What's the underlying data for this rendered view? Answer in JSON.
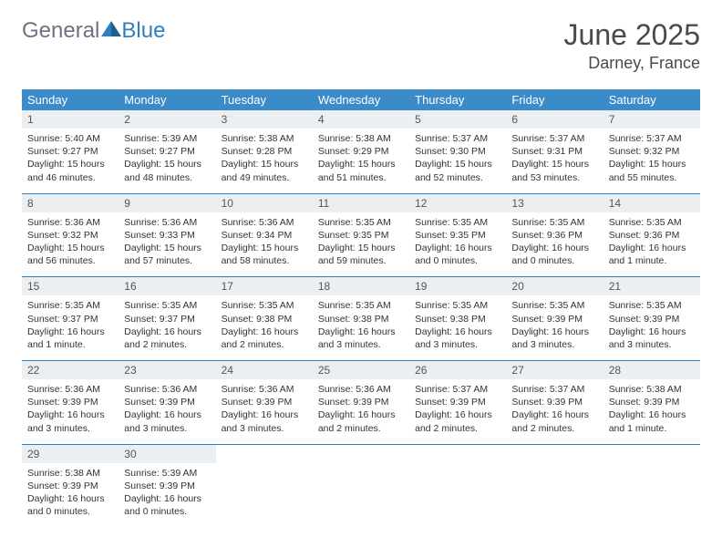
{
  "brand": {
    "part1": "General",
    "part2": "Blue"
  },
  "title": "June 2025",
  "location": "Darney, France",
  "colors": {
    "header_bg": "#3b8bc9",
    "header_text": "#ffffff",
    "daynum_bg": "#eceff1",
    "border": "#2f7fbf",
    "logo_gray": "#6b7280",
    "logo_blue": "#2f7fbf"
  },
  "day_headers": [
    "Sunday",
    "Monday",
    "Tuesday",
    "Wednesday",
    "Thursday",
    "Friday",
    "Saturday"
  ],
  "weeks": [
    [
      {
        "n": "1",
        "sr": "5:40 AM",
        "ss": "9:27 PM",
        "dl": "15 hours and 46 minutes."
      },
      {
        "n": "2",
        "sr": "5:39 AM",
        "ss": "9:27 PM",
        "dl": "15 hours and 48 minutes."
      },
      {
        "n": "3",
        "sr": "5:38 AM",
        "ss": "9:28 PM",
        "dl": "15 hours and 49 minutes."
      },
      {
        "n": "4",
        "sr": "5:38 AM",
        "ss": "9:29 PM",
        "dl": "15 hours and 51 minutes."
      },
      {
        "n": "5",
        "sr": "5:37 AM",
        "ss": "9:30 PM",
        "dl": "15 hours and 52 minutes."
      },
      {
        "n": "6",
        "sr": "5:37 AM",
        "ss": "9:31 PM",
        "dl": "15 hours and 53 minutes."
      },
      {
        "n": "7",
        "sr": "5:37 AM",
        "ss": "9:32 PM",
        "dl": "15 hours and 55 minutes."
      }
    ],
    [
      {
        "n": "8",
        "sr": "5:36 AM",
        "ss": "9:32 PM",
        "dl": "15 hours and 56 minutes."
      },
      {
        "n": "9",
        "sr": "5:36 AM",
        "ss": "9:33 PM",
        "dl": "15 hours and 57 minutes."
      },
      {
        "n": "10",
        "sr": "5:36 AM",
        "ss": "9:34 PM",
        "dl": "15 hours and 58 minutes."
      },
      {
        "n": "11",
        "sr": "5:35 AM",
        "ss": "9:35 PM",
        "dl": "15 hours and 59 minutes."
      },
      {
        "n": "12",
        "sr": "5:35 AM",
        "ss": "9:35 PM",
        "dl": "16 hours and 0 minutes."
      },
      {
        "n": "13",
        "sr": "5:35 AM",
        "ss": "9:36 PM",
        "dl": "16 hours and 0 minutes."
      },
      {
        "n": "14",
        "sr": "5:35 AM",
        "ss": "9:36 PM",
        "dl": "16 hours and 1 minute."
      }
    ],
    [
      {
        "n": "15",
        "sr": "5:35 AM",
        "ss": "9:37 PM",
        "dl": "16 hours and 1 minute."
      },
      {
        "n": "16",
        "sr": "5:35 AM",
        "ss": "9:37 PM",
        "dl": "16 hours and 2 minutes."
      },
      {
        "n": "17",
        "sr": "5:35 AM",
        "ss": "9:38 PM",
        "dl": "16 hours and 2 minutes."
      },
      {
        "n": "18",
        "sr": "5:35 AM",
        "ss": "9:38 PM",
        "dl": "16 hours and 3 minutes."
      },
      {
        "n": "19",
        "sr": "5:35 AM",
        "ss": "9:38 PM",
        "dl": "16 hours and 3 minutes."
      },
      {
        "n": "20",
        "sr": "5:35 AM",
        "ss": "9:39 PM",
        "dl": "16 hours and 3 minutes."
      },
      {
        "n": "21",
        "sr": "5:35 AM",
        "ss": "9:39 PM",
        "dl": "16 hours and 3 minutes."
      }
    ],
    [
      {
        "n": "22",
        "sr": "5:36 AM",
        "ss": "9:39 PM",
        "dl": "16 hours and 3 minutes."
      },
      {
        "n": "23",
        "sr": "5:36 AM",
        "ss": "9:39 PM",
        "dl": "16 hours and 3 minutes."
      },
      {
        "n": "24",
        "sr": "5:36 AM",
        "ss": "9:39 PM",
        "dl": "16 hours and 3 minutes."
      },
      {
        "n": "25",
        "sr": "5:36 AM",
        "ss": "9:39 PM",
        "dl": "16 hours and 2 minutes."
      },
      {
        "n": "26",
        "sr": "5:37 AM",
        "ss": "9:39 PM",
        "dl": "16 hours and 2 minutes."
      },
      {
        "n": "27",
        "sr": "5:37 AM",
        "ss": "9:39 PM",
        "dl": "16 hours and 2 minutes."
      },
      {
        "n": "28",
        "sr": "5:38 AM",
        "ss": "9:39 PM",
        "dl": "16 hours and 1 minute."
      }
    ],
    [
      {
        "n": "29",
        "sr": "5:38 AM",
        "ss": "9:39 PM",
        "dl": "16 hours and 0 minutes."
      },
      {
        "n": "30",
        "sr": "5:39 AM",
        "ss": "9:39 PM",
        "dl": "16 hours and 0 minutes."
      },
      null,
      null,
      null,
      null,
      null
    ]
  ],
  "labels": {
    "sunrise": "Sunrise: ",
    "sunset": "Sunset: ",
    "daylight": "Daylight: "
  }
}
